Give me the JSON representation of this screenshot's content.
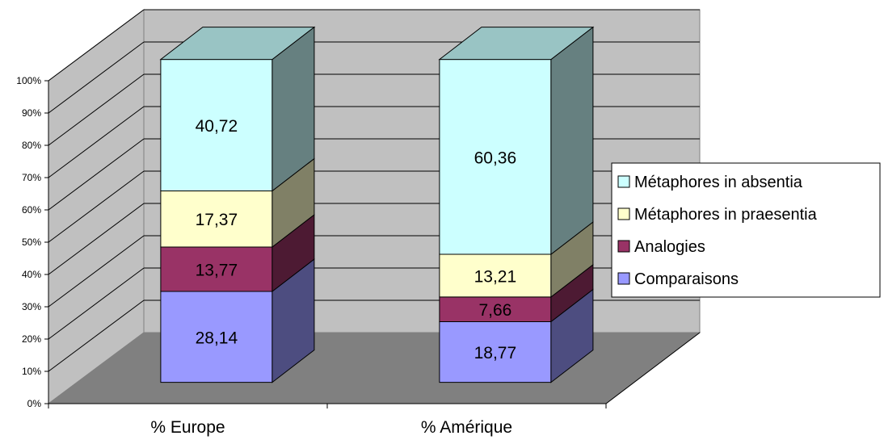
{
  "chart_data": {
    "type": "bar",
    "stacked": true,
    "three_d": true,
    "categories": [
      "% Europe",
      "% Amérique"
    ],
    "series": [
      {
        "name": "Comparaisons",
        "values": [
          28.14,
          18.77
        ],
        "labels": [
          "28,14",
          "18,77"
        ],
        "color": "#9999ff",
        "side_color": "#4d4d80",
        "top_color": "#bbbbff"
      },
      {
        "name": "Analogies",
        "values": [
          13.77,
          7.66
        ],
        "labels": [
          "13,77",
          "7,66"
        ],
        "color": "#993366",
        "side_color": "#4d1a33",
        "top_color": "#b35c85"
      },
      {
        "name": "Métaphores in praesentia",
        "values": [
          17.37,
          13.21
        ],
        "labels": [
          "17,37",
          "13,21"
        ],
        "color": "#ffffcc",
        "side_color": "#808066",
        "top_color": "#ffffe0"
      },
      {
        "name": "Métaphores in absentia",
        "values": [
          40.72,
          60.36
        ],
        "labels": [
          "40,72",
          "60,36"
        ],
        "color": "#ccffff",
        "side_color": "#668080",
        "top_color": "#99c4c4"
      }
    ],
    "yticks": [
      "0%",
      "10%",
      "20%",
      "30%",
      "40%",
      "50%",
      "60%",
      "70%",
      "80%",
      "90%",
      "100%"
    ],
    "ylim": [
      0,
      100
    ],
    "grid": true,
    "legend": "right",
    "title": "",
    "xlabel": "",
    "ylabel": "",
    "colors": {
      "back_wall": "#c0c0c0",
      "floor": "#808080",
      "grid": "#000000"
    }
  }
}
